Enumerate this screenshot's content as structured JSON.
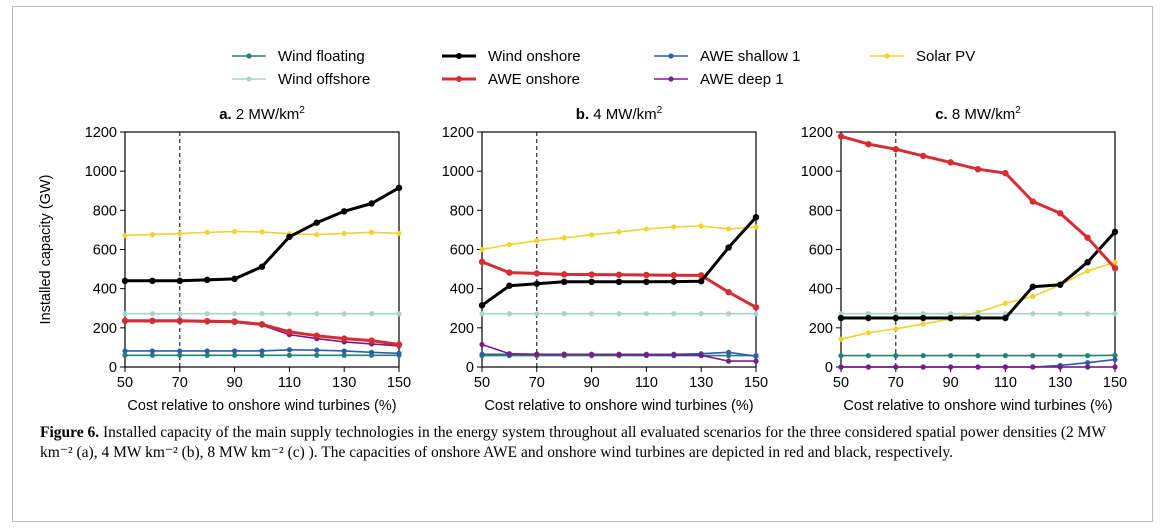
{
  "figure": {
    "caption_label": "Figure 6.",
    "caption_text": " Installed capacity of the main supply technologies in the energy system throughout all evaluated scenarios for the three considered spatial power densities (2 MW km⁻² (a), 4 MW km⁻² (b), 8 MW km⁻² (c) ). The capacities of onshore AWE and onshore wind turbines are depicted in red and black, respectively."
  },
  "legend": [
    {
      "name": "Wind floating",
      "color": "#2a7f73",
      "width": 1.6
    },
    {
      "name": "Wind onshore",
      "color": "#000000",
      "width": 3
    },
    {
      "name": "AWE shallow 1",
      "color": "#2a5fa8",
      "width": 1.6
    },
    {
      "name": "Solar PV",
      "color": "#f2d22e",
      "width": 1.6
    },
    {
      "name": "Wind offshore",
      "color": "#a9d4cc",
      "width": 1.6
    },
    {
      "name": "AWE onshore",
      "color": "#d62c33",
      "width": 3
    },
    {
      "name": "AWE deep 1",
      "color": "#7a1b8c",
      "width": 1.6
    }
  ],
  "chart_data": [
    {
      "type": "line",
      "panel": "a.",
      "title": "2 MW/km",
      "title_sup": "2",
      "xlabel": "Cost relative to onshore wind turbines (%)",
      "ylabel": "Installed capacity (GW)",
      "xlim": [
        50,
        150
      ],
      "ylim": [
        0,
        1200
      ],
      "xticks": [
        50,
        70,
        90,
        110,
        130,
        150
      ],
      "yticks": [
        0,
        200,
        400,
        600,
        800,
        1000,
        1200
      ],
      "reference_x": 70,
      "x": [
        50,
        60,
        70,
        80,
        90,
        100,
        110,
        120,
        130,
        140,
        150
      ],
      "series": [
        {
          "name": "Solar PV",
          "values": [
            672,
            676,
            681,
            688,
            692,
            690,
            680,
            676,
            682,
            688,
            682
          ]
        },
        {
          "name": "Wind offshore",
          "values": [
            272,
            272,
            272,
            272,
            272,
            272,
            272,
            272,
            272,
            272,
            272
          ]
        },
        {
          "name": "Wind floating",
          "values": [
            60,
            60,
            60,
            60,
            60,
            60,
            60,
            60,
            60,
            60,
            60
          ]
        },
        {
          "name": "AWE shallow 1",
          "values": [
            82,
            82,
            82,
            82,
            82,
            82,
            88,
            86,
            82,
            75,
            70
          ]
        },
        {
          "name": "AWE deep 1",
          "values": [
            232,
            232,
            232,
            230,
            228,
            214,
            165,
            145,
            128,
            118,
            108
          ]
        },
        {
          "name": "AWE onshore",
          "values": [
            236,
            236,
            236,
            234,
            232,
            218,
            180,
            160,
            145,
            135,
            115
          ]
        },
        {
          "name": "Wind onshore",
          "values": [
            440,
            440,
            440,
            445,
            450,
            512,
            665,
            737,
            795,
            835,
            915
          ]
        }
      ]
    },
    {
      "type": "line",
      "panel": "b.",
      "title": "4 MW/km",
      "title_sup": "2",
      "xlabel": "Cost relative to onshore wind turbines (%)",
      "ylabel": "",
      "xlim": [
        50,
        150
      ],
      "ylim": [
        0,
        1200
      ],
      "xticks": [
        50,
        70,
        90,
        110,
        130,
        150
      ],
      "yticks": [
        0,
        200,
        400,
        600,
        800,
        1000,
        1200
      ],
      "reference_x": 70,
      "x": [
        50,
        60,
        70,
        80,
        90,
        100,
        110,
        120,
        130,
        140,
        150
      ],
      "series": [
        {
          "name": "Solar PV",
          "values": [
            600,
            625,
            645,
            660,
            675,
            690,
            705,
            715,
            720,
            705,
            715
          ]
        },
        {
          "name": "Wind offshore",
          "values": [
            272,
            272,
            272,
            272,
            272,
            272,
            272,
            272,
            272,
            272,
            272
          ]
        },
        {
          "name": "Wind floating",
          "values": [
            58,
            58,
            58,
            58,
            58,
            58,
            58,
            58,
            58,
            58,
            58
          ]
        },
        {
          "name": "AWE shallow 1",
          "values": [
            65,
            65,
            65,
            65,
            65,
            65,
            65,
            65,
            68,
            75,
            55
          ]
        },
        {
          "name": "AWE deep 1",
          "values": [
            115,
            68,
            65,
            65,
            64,
            63,
            62,
            62,
            60,
            30,
            30
          ]
        },
        {
          "name": "AWE onshore",
          "values": [
            537,
            482,
            478,
            473,
            472,
            471,
            470,
            469,
            468,
            382,
            305
          ]
        },
        {
          "name": "Wind onshore",
          "values": [
            315,
            415,
            425,
            435,
            435,
            435,
            435,
            436,
            438,
            610,
            765
          ]
        }
      ]
    },
    {
      "type": "line",
      "panel": "c.",
      "title": "8 MW/km",
      "title_sup": "2",
      "xlabel": "Cost relative to onshore wind turbines (%)",
      "ylabel": "",
      "xlim": [
        50,
        150
      ],
      "ylim": [
        0,
        1200
      ],
      "xticks": [
        50,
        70,
        90,
        110,
        130,
        150
      ],
      "yticks": [
        0,
        200,
        400,
        600,
        800,
        1000,
        1200
      ],
      "reference_x": 70,
      "x": [
        50,
        60,
        70,
        80,
        90,
        100,
        110,
        120,
        130,
        140,
        150
      ],
      "series": [
        {
          "name": "Solar PV",
          "values": [
            142,
            175,
            195,
            220,
            245,
            280,
            325,
            360,
            420,
            490,
            535
          ]
        },
        {
          "name": "Wind offshore",
          "values": [
            272,
            272,
            272,
            272,
            272,
            272,
            272,
            272,
            272,
            272,
            272
          ]
        },
        {
          "name": "Wind floating",
          "values": [
            58,
            58,
            58,
            58,
            58,
            58,
            58,
            58,
            58,
            58,
            60
          ]
        },
        {
          "name": "AWE shallow 1",
          "values": [
            0,
            0,
            0,
            0,
            0,
            0,
            0,
            0,
            8,
            22,
            38
          ]
        },
        {
          "name": "AWE deep 1",
          "values": [
            0,
            0,
            0,
            0,
            0,
            0,
            0,
            0,
            0,
            0,
            0
          ]
        },
        {
          "name": "Wind onshore",
          "values": [
            250,
            250,
            250,
            250,
            250,
            250,
            250,
            410,
            420,
            535,
            690
          ]
        },
        {
          "name": "AWE onshore",
          "values": [
            1178,
            1138,
            1112,
            1078,
            1045,
            1010,
            990,
            845,
            785,
            660,
            505
          ]
        }
      ]
    }
  ]
}
